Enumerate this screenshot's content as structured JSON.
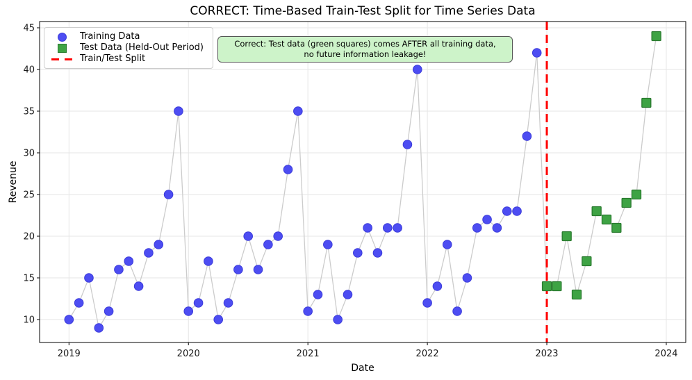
{
  "chart_data": {
    "type": "scatter",
    "title": "CORRECT: Time-Based Train-Test Split for Time Series Data",
    "xlabel": "Date",
    "ylabel": "Revenue",
    "x_tick_labels": [
      "2019",
      "2020",
      "2021",
      "2022",
      "2023",
      "2024"
    ],
    "x_tick_values": [
      2019,
      2020,
      2021,
      2022,
      2023,
      2024
    ],
    "y_ticks": [
      10,
      15,
      20,
      25,
      30,
      35,
      40,
      45
    ],
    "xlim": [
      2018.754,
      2024.163
    ],
    "ylim": [
      7.25,
      45.75
    ],
    "grid": true,
    "legend_position": "upper left",
    "connector_color": "#cccccc",
    "series": [
      {
        "name": "Training Data",
        "marker": "circle",
        "color": "#4d4df2",
        "edge_color": "#3b3bd9",
        "x": [
          "2019-01",
          "2019-02",
          "2019-03",
          "2019-04",
          "2019-05",
          "2019-06",
          "2019-07",
          "2019-08",
          "2019-09",
          "2019-10",
          "2019-11",
          "2019-12",
          "2020-01",
          "2020-02",
          "2020-03",
          "2020-04",
          "2020-05",
          "2020-06",
          "2020-07",
          "2020-08",
          "2020-09",
          "2020-10",
          "2020-11",
          "2020-12",
          "2021-01",
          "2021-02",
          "2021-03",
          "2021-04",
          "2021-05",
          "2021-06",
          "2021-07",
          "2021-08",
          "2021-09",
          "2021-10",
          "2021-11",
          "2021-12",
          "2022-01",
          "2022-02",
          "2022-03",
          "2022-04",
          "2022-05",
          "2022-06",
          "2022-07",
          "2022-08",
          "2022-09",
          "2022-10",
          "2022-11",
          "2022-12"
        ],
        "y": [
          10,
          12,
          15,
          9,
          11,
          16,
          17,
          14,
          18,
          19,
          25,
          35,
          11,
          12,
          17,
          10,
          12,
          16,
          20,
          16,
          19,
          20,
          28,
          35,
          11,
          13,
          19,
          10,
          13,
          18,
          21,
          18,
          21,
          21,
          31,
          40,
          12,
          14,
          19,
          11,
          15,
          21,
          22,
          21,
          23,
          23,
          32,
          42
        ]
      },
      {
        "name": "Test Data (Held-Out Period)",
        "marker": "square",
        "color": "#3ea344",
        "edge_color": "#2a7a2f",
        "x": [
          "2023-01",
          "2023-02",
          "2023-03",
          "2023-04",
          "2023-05",
          "2023-06",
          "2023-07",
          "2023-08",
          "2023-09",
          "2023-10",
          "2023-11",
          "2023-12"
        ],
        "y": [
          14,
          14,
          20,
          13,
          17,
          23,
          22,
          21,
          24,
          25,
          36,
          44
        ]
      }
    ],
    "split_line": {
      "name": "Train/Test Split",
      "x": "2023-01",
      "color": "#ff0000",
      "style": "dashed"
    },
    "annotation": {
      "line1": "Correct: Test data (green squares) comes AFTER all training data,",
      "line2": "no future information leakage!",
      "bg_color": "#cdf3c9",
      "border_color": "#555555"
    }
  }
}
